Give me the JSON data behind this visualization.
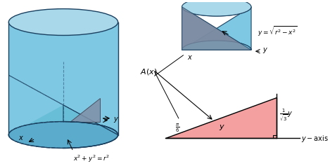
{
  "bg_color": "#ffffff",
  "cyl_color_light": "#a8d8ea",
  "cyl_color_mid": "#7ec8e3",
  "cyl_color_dark": "#5aabcc",
  "cyl_color_inner": "#6ab8d4",
  "wedge_blue": "#7ec8e3",
  "wedge_dark": "#8090a8",
  "triangle_fill": "#f4a0a0",
  "dark_edge": "#1a4060",
  "mid_edge": "#2a6080"
}
